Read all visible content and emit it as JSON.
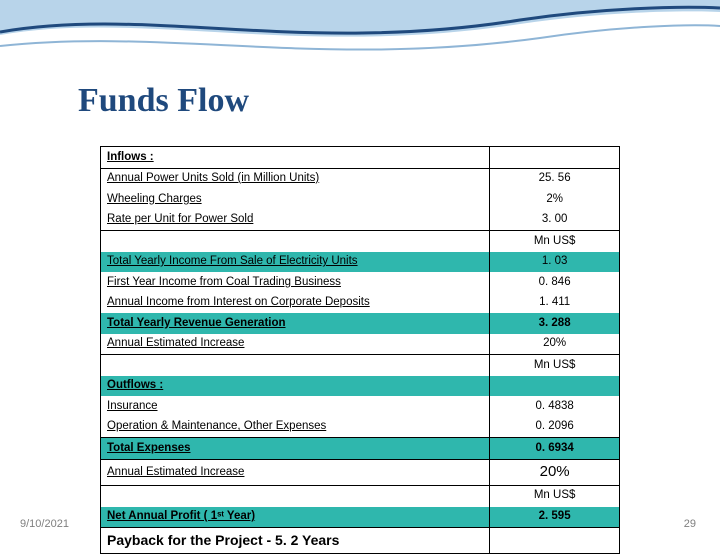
{
  "theme": {
    "title_color": "#1f497d",
    "highlight_color": "#2fb7ad",
    "border_color": "#000000",
    "swoosh_dark": "#1f497d",
    "swoosh_light": "#b8d4ea",
    "footer_color": "#7f7f7f"
  },
  "title": "Funds Flow",
  "footer": {
    "date": "9/10/2021",
    "page": "29"
  },
  "rows": [
    {
      "label": "Inflows :",
      "val": "",
      "cls": "bold ul",
      "hl": false,
      "btop": true,
      "bbot": true,
      "vtop": true
    },
    {
      "label": "Annual Power Units Sold (in Million Units)",
      "val": "25. 56",
      "cls": "ul",
      "hl": false
    },
    {
      "label": "Wheeling Charges",
      "val": "2%",
      "cls": "ul",
      "hl": false
    },
    {
      "label": "Rate per Unit for Power Sold",
      "val": "3. 00",
      "cls": "ul",
      "hl": false,
      "bbot": true
    },
    {
      "label": "",
      "val": "Mn US$",
      "cls": "",
      "hl": false
    },
    {
      "label": "Total Yearly Income From  Sale of Electricity Units",
      "val": "1. 03",
      "cls": "ul",
      "hl": true
    },
    {
      "label": "First Year Income from Coal Trading Business",
      "val": "0. 846",
      "cls": "ul",
      "hl": false
    },
    {
      "label": "Annual Income from Interest on Corporate Deposits",
      "val": "1. 411",
      "cls": "ul",
      "hl": false
    },
    {
      "label": "Total Yearly Revenue Generation",
      "val": "3. 288",
      "cls": "bold ul",
      "hl": true,
      "vbold": true
    },
    {
      "label": "Annual Estimated Increase",
      "val": "20%",
      "cls": "ul",
      "hl": false,
      "bbot": true
    },
    {
      "label": "",
      "val": "Mn US$",
      "cls": "",
      "hl": false
    },
    {
      "label": "Outflows :",
      "val": "",
      "cls": "bold ul",
      "hl": true
    },
    {
      "label": "Insurance",
      "val": "0. 4838",
      "cls": "ul",
      "hl": false
    },
    {
      "label": "Operation & Maintenance, Other Expenses",
      "val": "0. 2096",
      "cls": "ul",
      "hl": false,
      "bbot": true
    },
    {
      "label": "Total Expenses",
      "val": "0. 6934",
      "cls": "bold ul",
      "hl": true,
      "vbold": true,
      "bbot": true
    },
    {
      "label": "Annual Estimated Increase",
      "val": "20%",
      "cls": "ul",
      "hl": false,
      "vcls": "pct20",
      "bbot": true
    },
    {
      "label": "",
      "val": "Mn US$",
      "cls": "",
      "hl": false
    },
    {
      "label": "Net Annual Profit ( 1ˢᵗ Year)",
      "val": "2. 595",
      "cls": "bold ul",
      "hl": true,
      "vbold": true,
      "bbot": true
    },
    {
      "label": "Payback for the Project  - 5. 2 Years",
      "val": "",
      "cls": "bold big",
      "hl": false,
      "bbot": true
    }
  ]
}
